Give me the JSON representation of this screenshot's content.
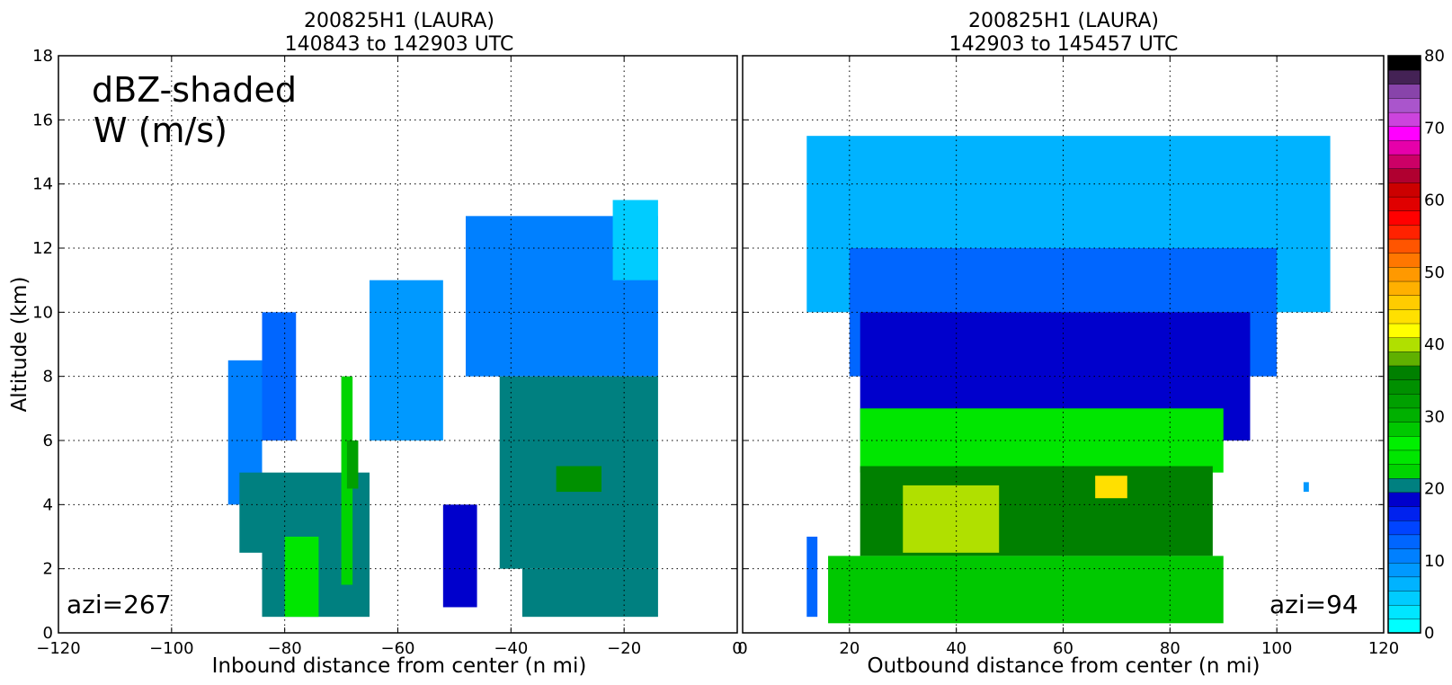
{
  "colorbar": {
    "ticks": [
      0,
      10,
      20,
      30,
      40,
      50,
      60,
      70,
      80
    ],
    "colors": [
      "#00ffff",
      "#00e6ff",
      "#00ccff",
      "#00b3ff",
      "#0099ff",
      "#0080ff",
      "#0066ff",
      "#0044ff",
      "#0022ee",
      "#0000cc",
      "#008080",
      "#00d400",
      "#00e600",
      "#00f000",
      "#00c800",
      "#00b000",
      "#00a000",
      "#009000",
      "#008000",
      "#60b000",
      "#b0e000",
      "#ffff00",
      "#ffe000",
      "#ffcc00",
      "#ffb000",
      "#ff9900",
      "#ff7700",
      "#ff5500",
      "#ff2200",
      "#ff0000",
      "#e00000",
      "#cc0000",
      "#b00030",
      "#cc0066",
      "#e600aa",
      "#ff00ff",
      "#cc44dd",
      "#aa55cc",
      "#8844aa",
      "#442255",
      "#000000"
    ]
  },
  "chart_data": [
    {
      "type": "heatmap",
      "title": "200825H1 (LAURA)",
      "subtitle": "140843 to 142903 UTC",
      "xlabel": "Inbound distance from center (n mi)",
      "ylabel": "Altitude (km)",
      "xlim": [
        -120,
        0
      ],
      "ylim": [
        0,
        18
      ],
      "xticks": [
        -120,
        -100,
        -80,
        -60,
        -40,
        -20,
        0
      ],
      "yticks": [
        0,
        2,
        4,
        6,
        8,
        10,
        12,
        14,
        16,
        18
      ],
      "grid": true,
      "annotations": [
        "dBZ-shaded",
        "W (m/s)",
        "azi=267"
      ],
      "contour_label": "1",
      "cells": [
        {
          "x": [
            -90,
            -84
          ],
          "y": [
            4,
            8.5
          ],
          "dbz": 10
        },
        {
          "x": [
            -88,
            -84
          ],
          "y": [
            2.5,
            5
          ],
          "dbz": 20
        },
        {
          "x": [
            -84,
            -78
          ],
          "y": [
            6,
            10
          ],
          "dbz": 13
        },
        {
          "x": [
            -84,
            -65
          ],
          "y": [
            0.5,
            5
          ],
          "dbz": 20
        },
        {
          "x": [
            -80,
            -74
          ],
          "y": [
            0.5,
            3
          ],
          "dbz": 25
        },
        {
          "x": [
            -70,
            -68
          ],
          "y": [
            1.5,
            8
          ],
          "dbz": 22
        },
        {
          "x": [
            -69,
            -67
          ],
          "y": [
            4.5,
            6
          ],
          "dbz": 32
        },
        {
          "x": [
            -65,
            -52
          ],
          "y": [
            6,
            11
          ],
          "dbz": 8
        },
        {
          "x": [
            -52,
            -46
          ],
          "y": [
            0.8,
            4
          ],
          "dbz": 18
        },
        {
          "x": [
            -48,
            -14
          ],
          "y": [
            8,
            13
          ],
          "dbz": 10
        },
        {
          "x": [
            -42,
            -14
          ],
          "y": [
            2,
            8
          ],
          "dbz": 20
        },
        {
          "x": [
            -38,
            -14
          ],
          "y": [
            0.5,
            2
          ],
          "dbz": 20
        },
        {
          "x": [
            -32,
            -24
          ],
          "y": [
            4.4,
            5.2
          ],
          "dbz": 34
        },
        {
          "x": [
            -22,
            -14
          ],
          "y": [
            11,
            13.5
          ],
          "dbz": 4
        }
      ]
    },
    {
      "type": "heatmap",
      "title": "200825H1 (LAURA)",
      "subtitle": "142903 to 145457 UTC",
      "xlabel": "Outbound distance from center (n mi)",
      "ylabel": "",
      "xlim": [
        0,
        120
      ],
      "ylim": [
        0,
        18
      ],
      "xticks": [
        0,
        20,
        40,
        60,
        80,
        100,
        120
      ],
      "yticks": [
        0,
        2,
        4,
        6,
        8,
        10,
        12,
        14,
        16,
        18
      ],
      "grid": true,
      "annotations": [
        "azi=94"
      ],
      "contour_label": "1",
      "cells": [
        {
          "x": [
            12,
            110
          ],
          "y": [
            10,
            15.5
          ],
          "dbz": 6
        },
        {
          "x": [
            20,
            100
          ],
          "y": [
            8,
            12
          ],
          "dbz": 12
        },
        {
          "x": [
            22,
            95
          ],
          "y": [
            6,
            10
          ],
          "dbz": 19
        },
        {
          "x": [
            22,
            90
          ],
          "y": [
            5,
            7
          ],
          "dbz": 24
        },
        {
          "x": [
            22,
            88
          ],
          "y": [
            2.4,
            5.2
          ],
          "dbz": 36
        },
        {
          "x": [
            30,
            48
          ],
          "y": [
            2.5,
            4.6
          ],
          "dbz": 40
        },
        {
          "x": [
            66,
            72
          ],
          "y": [
            4.2,
            4.9
          ],
          "dbz": 45
        },
        {
          "x": [
            12,
            14
          ],
          "y": [
            0.5,
            3
          ],
          "dbz": 12
        },
        {
          "x": [
            16,
            90
          ],
          "y": [
            0.3,
            2.4
          ],
          "dbz": 28
        },
        {
          "x": [
            105,
            106
          ],
          "y": [
            4.4,
            4.7
          ],
          "dbz": 8
        }
      ]
    }
  ]
}
